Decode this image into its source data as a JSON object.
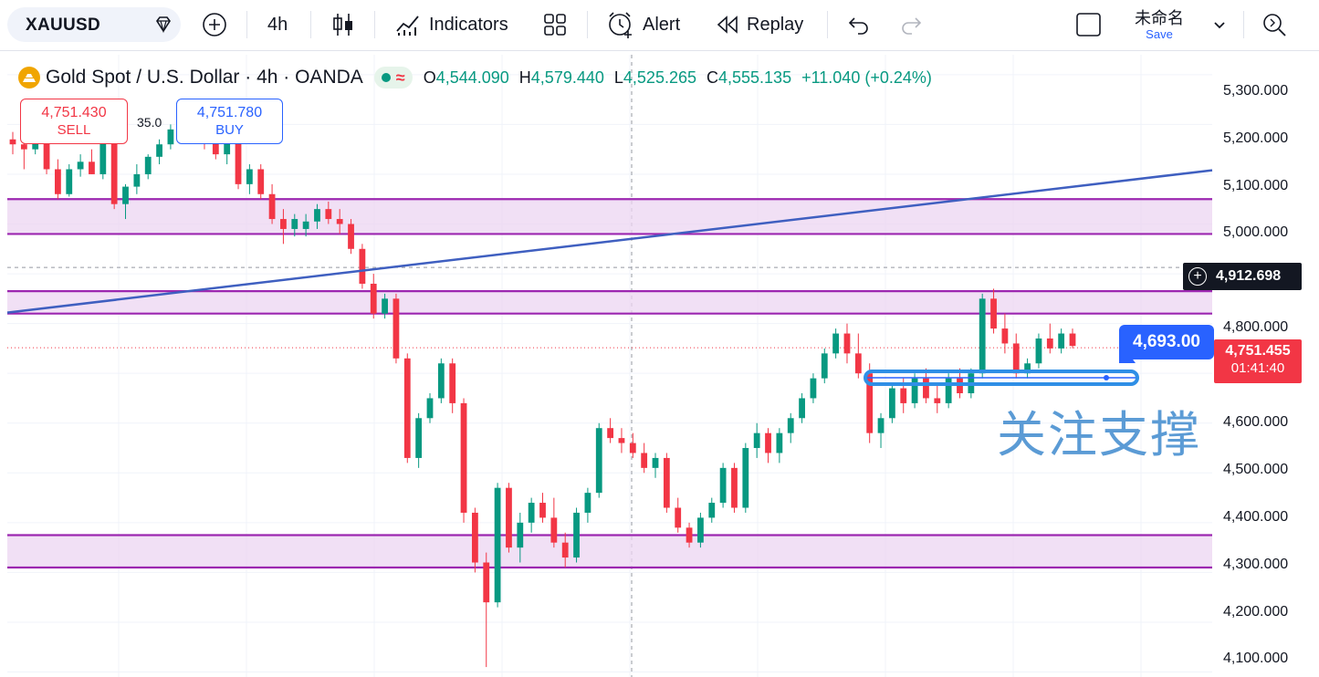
{
  "toolbar": {
    "symbol": "XAUUSD",
    "interval": "4h",
    "indicators_label": "Indicators",
    "alert_label": "Alert",
    "replay_label": "Replay",
    "layout_name": "未命名",
    "save_label": "Save"
  },
  "legend": {
    "title": "Gold Spot / U.S. Dollar · 4h · OANDA",
    "open_key": "O",
    "open": "4,544.090",
    "high_key": "H",
    "high": "4,579.440",
    "low_key": "L",
    "low": "4,525.265",
    "close_key": "C",
    "close": "4,555.135",
    "change": "+11.040 (+0.24%)"
  },
  "trade": {
    "sell_price": "4,751.430",
    "sell_label": "SELL",
    "buy_price": "4,751.780",
    "buy_label": "BUY",
    "spread": "35.0"
  },
  "price_axis": {
    "labels": [
      "5,300.000",
      "5,200.000",
      "5,100.000",
      "5,000.000",
      "4,800.000",
      "4,600.000",
      "4,500.000",
      "4,400.000",
      "4,300.000",
      "4,200.000",
      "4,100.000"
    ],
    "crosshair_value": "4,912.698",
    "current_price": "4,751.455",
    "countdown": "01:41:40"
  },
  "annotations": {
    "alert_price": "4,693.00",
    "text": "关注支撑"
  },
  "colors": {
    "up": "#089981",
    "down": "#f23645",
    "zone_fill": "#ecd5f2",
    "zone_border": "#9c27b0",
    "trendline": "#3f5fc0",
    "annotation": "#5b9bd5"
  },
  "chart_data": {
    "type": "candlestick",
    "symbol": "XAUUSD",
    "timeframe": "4h",
    "ylim": [
      4090,
      5340
    ],
    "support_resistance_zones": [
      {
        "low": 4980,
        "high": 5050
      },
      {
        "low": 4820,
        "high": 4865
      },
      {
        "low": 4310,
        "high": 4375
      }
    ],
    "trendline": {
      "start_price": 4822,
      "end_price": 5108
    },
    "support_level": 4693,
    "candles": [
      [
        5170,
        5185,
        5140,
        5160
      ],
      [
        5160,
        5170,
        5110,
        5150
      ],
      [
        5150,
        5175,
        5140,
        5165
      ],
      [
        5165,
        5170,
        5100,
        5110
      ],
      [
        5110,
        5130,
        5050,
        5060
      ],
      [
        5060,
        5120,
        5055,
        5110
      ],
      [
        5110,
        5140,
        5095,
        5125
      ],
      [
        5125,
        5150,
        5100,
        5100
      ],
      [
        5100,
        5180,
        5090,
        5170
      ],
      [
        5170,
        5175,
        5030,
        5040
      ],
      [
        5040,
        5080,
        5010,
        5075
      ],
      [
        5075,
        5120,
        5060,
        5100
      ],
      [
        5100,
        5140,
        5090,
        5135
      ],
      [
        5135,
        5170,
        5120,
        5160
      ],
      [
        5160,
        5200,
        5150,
        5190
      ],
      [
        5190,
        5215,
        5175,
        5200
      ],
      [
        5200,
        5210,
        5170,
        5180
      ],
      [
        5180,
        5195,
        5150,
        5165
      ],
      [
        5165,
        5185,
        5130,
        5140
      ],
      [
        5140,
        5180,
        5120,
        5170
      ],
      [
        5170,
        5180,
        5070,
        5080
      ],
      [
        5080,
        5120,
        5060,
        5110
      ],
      [
        5110,
        5120,
        5050,
        5060
      ],
      [
        5060,
        5080,
        5000,
        5010
      ],
      [
        5010,
        5030,
        4960,
        4990
      ],
      [
        4990,
        5020,
        4975,
        5010
      ],
      [
        4990,
        5020,
        4975,
        5005
      ],
      [
        5005,
        5040,
        4990,
        5030
      ],
      [
        5030,
        5045,
        5000,
        5010
      ],
      [
        5010,
        5030,
        4980,
        5000
      ],
      [
        5000,
        5010,
        4940,
        4950
      ],
      [
        4950,
        4960,
        4870,
        4880
      ],
      [
        4880,
        4900,
        4810,
        4820
      ],
      [
        4820,
        4860,
        4810,
        4850
      ],
      [
        4850,
        4860,
        4720,
        4730
      ],
      [
        4730,
        4740,
        4520,
        4530
      ],
      [
        4530,
        4620,
        4510,
        4610
      ],
      [
        4610,
        4660,
        4600,
        4650
      ],
      [
        4650,
        4730,
        4640,
        4720
      ],
      [
        4720,
        4730,
        4620,
        4640
      ],
      [
        4640,
        4650,
        4400,
        4420
      ],
      [
        4420,
        4430,
        4300,
        4320
      ],
      [
        4320,
        4340,
        4110,
        4240
      ],
      [
        4240,
        4480,
        4230,
        4470
      ],
      [
        4470,
        4480,
        4340,
        4350
      ],
      [
        4350,
        4420,
        4320,
        4400
      ],
      [
        4400,
        4450,
        4380,
        4440
      ],
      [
        4440,
        4460,
        4400,
        4410
      ],
      [
        4410,
        4450,
        4350,
        4360
      ],
      [
        4360,
        4380,
        4310,
        4330
      ],
      [
        4330,
        4430,
        4320,
        4420
      ],
      [
        4420,
        4470,
        4400,
        4460
      ],
      [
        4460,
        4600,
        4450,
        4590
      ],
      [
        4590,
        4610,
        4560,
        4570
      ],
      [
        4570,
        4590,
        4540,
        4560
      ],
      [
        4560,
        4580,
        4530,
        4540
      ],
      [
        4540,
        4560,
        4500,
        4510
      ],
      [
        4510,
        4540,
        4490,
        4530
      ],
      [
        4530,
        4540,
        4420,
        4430
      ],
      [
        4430,
        4450,
        4380,
        4390
      ],
      [
        4390,
        4400,
        4350,
        4360
      ],
      [
        4360,
        4420,
        4350,
        4410
      ],
      [
        4410,
        4450,
        4400,
        4440
      ],
      [
        4440,
        4520,
        4430,
        4510
      ],
      [
        4510,
        4520,
        4420,
        4430
      ],
      [
        4430,
        4560,
        4420,
        4550
      ],
      [
        4550,
        4600,
        4530,
        4580
      ],
      [
        4580,
        4590,
        4520,
        4540
      ],
      [
        4540,
        4590,
        4520,
        4580
      ],
      [
        4580,
        4620,
        4560,
        4610
      ],
      [
        4610,
        4660,
        4600,
        4650
      ],
      [
        4650,
        4700,
        4640,
        4690
      ],
      [
        4690,
        4750,
        4680,
        4740
      ],
      [
        4740,
        4790,
        4730,
        4780
      ],
      [
        4780,
        4800,
        4720,
        4740
      ],
      [
        4740,
        4780,
        4690,
        4700
      ],
      [
        4700,
        4720,
        4560,
        4580
      ],
      [
        4580,
        4620,
        4550,
        4610
      ],
      [
        4610,
        4680,
        4600,
        4670
      ],
      [
        4670,
        4690,
        4620,
        4640
      ],
      [
        4640,
        4700,
        4630,
        4690
      ],
      [
        4690,
        4710,
        4640,
        4650
      ],
      [
        4650,
        4680,
        4620,
        4640
      ],
      [
        4640,
        4700,
        4630,
        4690
      ],
      [
        4690,
        4710,
        4650,
        4660
      ],
      [
        4660,
        4710,
        4650,
        4700
      ],
      [
        4700,
        4860,
        4690,
        4850
      ],
      [
        4850,
        4870,
        4780,
        4790
      ],
      [
        4790,
        4820,
        4740,
        4760
      ],
      [
        4760,
        4780,
        4690,
        4700
      ],
      [
        4700,
        4730,
        4690,
        4720
      ],
      [
        4720,
        4780,
        4710,
        4770
      ],
      [
        4770,
        4800,
        4740,
        4750
      ],
      [
        4750,
        4790,
        4740,
        4780
      ],
      [
        4780,
        4790,
        4750,
        4755
      ]
    ]
  }
}
